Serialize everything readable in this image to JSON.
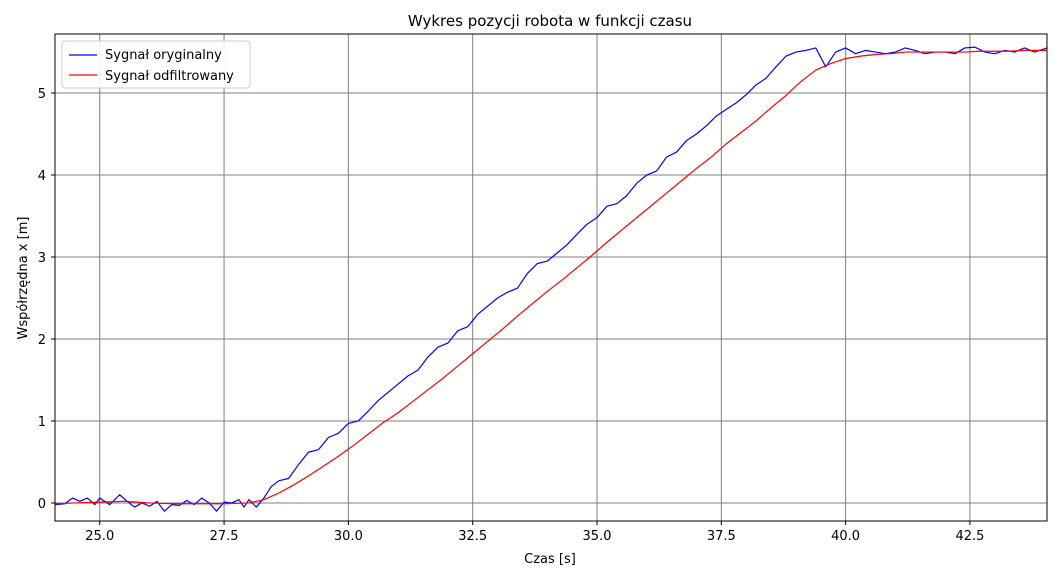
{
  "chart_data": {
    "type": "line",
    "title": "Wykres pozycji robota w funkcji czasu",
    "xlabel": "Czas [s]",
    "ylabel": "Współrzędna x [m]",
    "xlim": [
      24.1,
      44.05
    ],
    "ylim": [
      -0.22,
      5.72
    ],
    "x_ticks": [
      25.0,
      27.5,
      30.0,
      32.5,
      35.0,
      37.5,
      40.0,
      42.5
    ],
    "x_tick_labels": [
      "25.0",
      "27.5",
      "30.0",
      "32.5",
      "35.0",
      "37.5",
      "40.0",
      "42.5"
    ],
    "y_ticks": [
      0,
      1,
      2,
      3,
      4,
      5
    ],
    "y_tick_labels": [
      "0",
      "1",
      "2",
      "3",
      "4",
      "5"
    ],
    "grid": true,
    "legend_position": "top-left",
    "series": [
      {
        "name": "Sygnał oryginalny",
        "color": "#0000ff",
        "points": [
          [
            24.1,
            -0.02
          ],
          [
            24.3,
            -0.01
          ],
          [
            24.45,
            0.06
          ],
          [
            24.6,
            0.02
          ],
          [
            24.75,
            0.06
          ],
          [
            24.9,
            -0.02
          ],
          [
            25.0,
            0.06
          ],
          [
            25.2,
            -0.02
          ],
          [
            25.4,
            0.1
          ],
          [
            25.55,
            0.02
          ],
          [
            25.7,
            -0.05
          ],
          [
            25.85,
            0.0
          ],
          [
            26.0,
            -0.04
          ],
          [
            26.15,
            0.02
          ],
          [
            26.3,
            -0.1
          ],
          [
            26.45,
            -0.02
          ],
          [
            26.6,
            -0.03
          ],
          [
            26.75,
            0.03
          ],
          [
            26.9,
            -0.02
          ],
          [
            27.05,
            0.06
          ],
          [
            27.2,
            0.0
          ],
          [
            27.35,
            -0.1
          ],
          [
            27.5,
            0.01
          ],
          [
            27.65,
            0.0
          ],
          [
            27.8,
            0.04
          ],
          [
            27.9,
            -0.05
          ],
          [
            28.0,
            0.04
          ],
          [
            28.15,
            -0.05
          ],
          [
            28.3,
            0.06
          ],
          [
            28.45,
            0.2
          ],
          [
            28.6,
            0.27
          ],
          [
            28.8,
            0.3
          ],
          [
            29.0,
            0.47
          ],
          [
            29.2,
            0.62
          ],
          [
            29.4,
            0.65
          ],
          [
            29.6,
            0.8
          ],
          [
            29.8,
            0.85
          ],
          [
            30.0,
            0.97
          ],
          [
            30.2,
            1.0
          ],
          [
            30.4,
            1.12
          ],
          [
            30.6,
            1.25
          ],
          [
            30.8,
            1.35
          ],
          [
            31.0,
            1.45
          ],
          [
            31.2,
            1.55
          ],
          [
            31.4,
            1.62
          ],
          [
            31.6,
            1.78
          ],
          [
            31.8,
            1.9
          ],
          [
            32.0,
            1.95
          ],
          [
            32.2,
            2.1
          ],
          [
            32.4,
            2.15
          ],
          [
            32.6,
            2.3
          ],
          [
            32.8,
            2.4
          ],
          [
            33.0,
            2.5
          ],
          [
            33.2,
            2.57
          ],
          [
            33.4,
            2.62
          ],
          [
            33.6,
            2.8
          ],
          [
            33.8,
            2.92
          ],
          [
            34.0,
            2.95
          ],
          [
            34.2,
            3.05
          ],
          [
            34.4,
            3.15
          ],
          [
            34.6,
            3.28
          ],
          [
            34.8,
            3.4
          ],
          [
            35.0,
            3.48
          ],
          [
            35.2,
            3.62
          ],
          [
            35.4,
            3.65
          ],
          [
            35.6,
            3.75
          ],
          [
            35.8,
            3.9
          ],
          [
            36.0,
            4.0
          ],
          [
            36.2,
            4.05
          ],
          [
            36.4,
            4.22
          ],
          [
            36.6,
            4.28
          ],
          [
            36.8,
            4.42
          ],
          [
            37.0,
            4.5
          ],
          [
            37.2,
            4.6
          ],
          [
            37.4,
            4.72
          ],
          [
            37.6,
            4.8
          ],
          [
            37.8,
            4.88
          ],
          [
            38.0,
            4.98
          ],
          [
            38.2,
            5.1
          ],
          [
            38.4,
            5.18
          ],
          [
            38.6,
            5.32
          ],
          [
            38.8,
            5.45
          ],
          [
            39.0,
            5.5
          ],
          [
            39.2,
            5.52
          ],
          [
            39.4,
            5.55
          ],
          [
            39.6,
            5.32
          ],
          [
            39.8,
            5.5
          ],
          [
            40.0,
            5.55
          ],
          [
            40.2,
            5.48
          ],
          [
            40.4,
            5.52
          ],
          [
            40.6,
            5.5
          ],
          [
            40.8,
            5.48
          ],
          [
            41.0,
            5.5
          ],
          [
            41.2,
            5.55
          ],
          [
            41.4,
            5.52
          ],
          [
            41.6,
            5.48
          ],
          [
            41.8,
            5.5
          ],
          [
            42.0,
            5.5
          ],
          [
            42.2,
            5.48
          ],
          [
            42.4,
            5.55
          ],
          [
            42.6,
            5.56
          ],
          [
            42.8,
            5.5
          ],
          [
            43.0,
            5.48
          ],
          [
            43.2,
            5.52
          ],
          [
            43.4,
            5.5
          ],
          [
            43.6,
            5.55
          ],
          [
            43.8,
            5.5
          ],
          [
            44.05,
            5.55
          ]
        ]
      },
      {
        "name": "Sygnał odfiltrowany",
        "color": "#ff0000",
        "points": [
          [
            24.1,
            -0.01
          ],
          [
            24.5,
            0.0
          ],
          [
            25.0,
            0.01
          ],
          [
            25.5,
            0.02
          ],
          [
            26.0,
            0.0
          ],
          [
            26.5,
            -0.01
          ],
          [
            27.0,
            -0.01
          ],
          [
            27.5,
            -0.01
          ],
          [
            28.0,
            0.0
          ],
          [
            28.3,
            0.04
          ],
          [
            28.6,
            0.12
          ],
          [
            28.9,
            0.22
          ],
          [
            29.2,
            0.33
          ],
          [
            29.5,
            0.45
          ],
          [
            29.8,
            0.57
          ],
          [
            30.1,
            0.7
          ],
          [
            30.4,
            0.84
          ],
          [
            30.7,
            0.98
          ],
          [
            31.0,
            1.1
          ],
          [
            31.3,
            1.24
          ],
          [
            31.6,
            1.38
          ],
          [
            31.9,
            1.52
          ],
          [
            32.2,
            1.67
          ],
          [
            32.5,
            1.82
          ],
          [
            32.8,
            1.97
          ],
          [
            33.1,
            2.12
          ],
          [
            33.4,
            2.28
          ],
          [
            33.7,
            2.43
          ],
          [
            34.0,
            2.58
          ],
          [
            34.3,
            2.72
          ],
          [
            34.6,
            2.87
          ],
          [
            34.9,
            3.02
          ],
          [
            35.2,
            3.18
          ],
          [
            35.5,
            3.33
          ],
          [
            35.8,
            3.48
          ],
          [
            36.1,
            3.63
          ],
          [
            36.4,
            3.78
          ],
          [
            36.7,
            3.93
          ],
          [
            37.0,
            4.08
          ],
          [
            37.3,
            4.22
          ],
          [
            37.6,
            4.38
          ],
          [
            37.9,
            4.52
          ],
          [
            38.2,
            4.66
          ],
          [
            38.5,
            4.82
          ],
          [
            38.8,
            4.97
          ],
          [
            39.1,
            5.14
          ],
          [
            39.4,
            5.28
          ],
          [
            39.7,
            5.36
          ],
          [
            40.0,
            5.42
          ],
          [
            40.3,
            5.45
          ],
          [
            40.6,
            5.47
          ],
          [
            40.9,
            5.48
          ],
          [
            41.2,
            5.5
          ],
          [
            41.5,
            5.5
          ],
          [
            41.8,
            5.5
          ],
          [
            42.1,
            5.5
          ],
          [
            42.4,
            5.5
          ],
          [
            42.7,
            5.51
          ],
          [
            43.0,
            5.51
          ],
          [
            43.3,
            5.51
          ],
          [
            43.6,
            5.52
          ],
          [
            44.05,
            5.52
          ]
        ]
      }
    ]
  }
}
